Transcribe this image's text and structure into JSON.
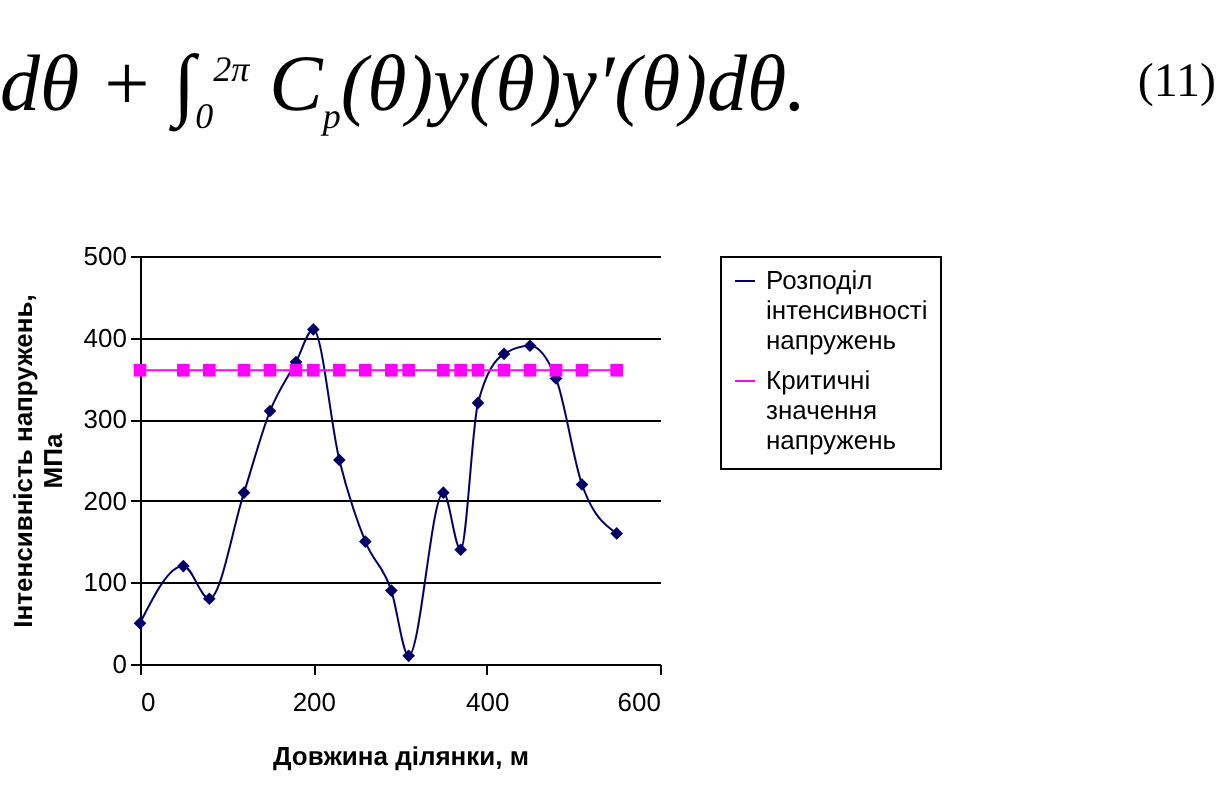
{
  "chart_data": {
    "type": "line",
    "annotations": [
      "dθ + ∫$_{0}$$^{2π}$ C$_{p}$(θ)y(θ)y′(θ)dθ.",
      "(11)"
    ],
    "xlabel": "Довжина ділянки, м",
    "ylabel": "Інтенсивність напружень, МПа",
    "x": [
      0,
      50,
      80,
      120,
      150,
      180,
      200,
      230,
      260,
      290,
      310,
      350,
      370,
      390,
      420,
      450,
      480,
      510,
      550
    ],
    "series": [
      {
        "name": "Розподіл інтенсивності напружень",
        "color": "#000066",
        "marker": "diamond",
        "values": [
          50,
          120,
          80,
          210,
          310,
          370,
          410,
          250,
          150,
          90,
          10,
          210,
          140,
          320,
          380,
          390,
          350,
          220,
          160
        ]
      },
      {
        "name": "Критичні значення напружень",
        "color": "#ff00ff",
        "marker": "square",
        "values": [
          360,
          360,
          360,
          360,
          360,
          360,
          360,
          360,
          360,
          360,
          360,
          360,
          360,
          360,
          360,
          360,
          360,
          360,
          360
        ]
      }
    ],
    "xlim": [
      0,
      600
    ],
    "xticks": [
      0,
      200,
      400,
      600
    ],
    "ylim": [
      0,
      500
    ],
    "yticks": [
      0,
      100,
      200,
      300,
      400,
      500
    ],
    "grid": "y",
    "legend": "right"
  }
}
